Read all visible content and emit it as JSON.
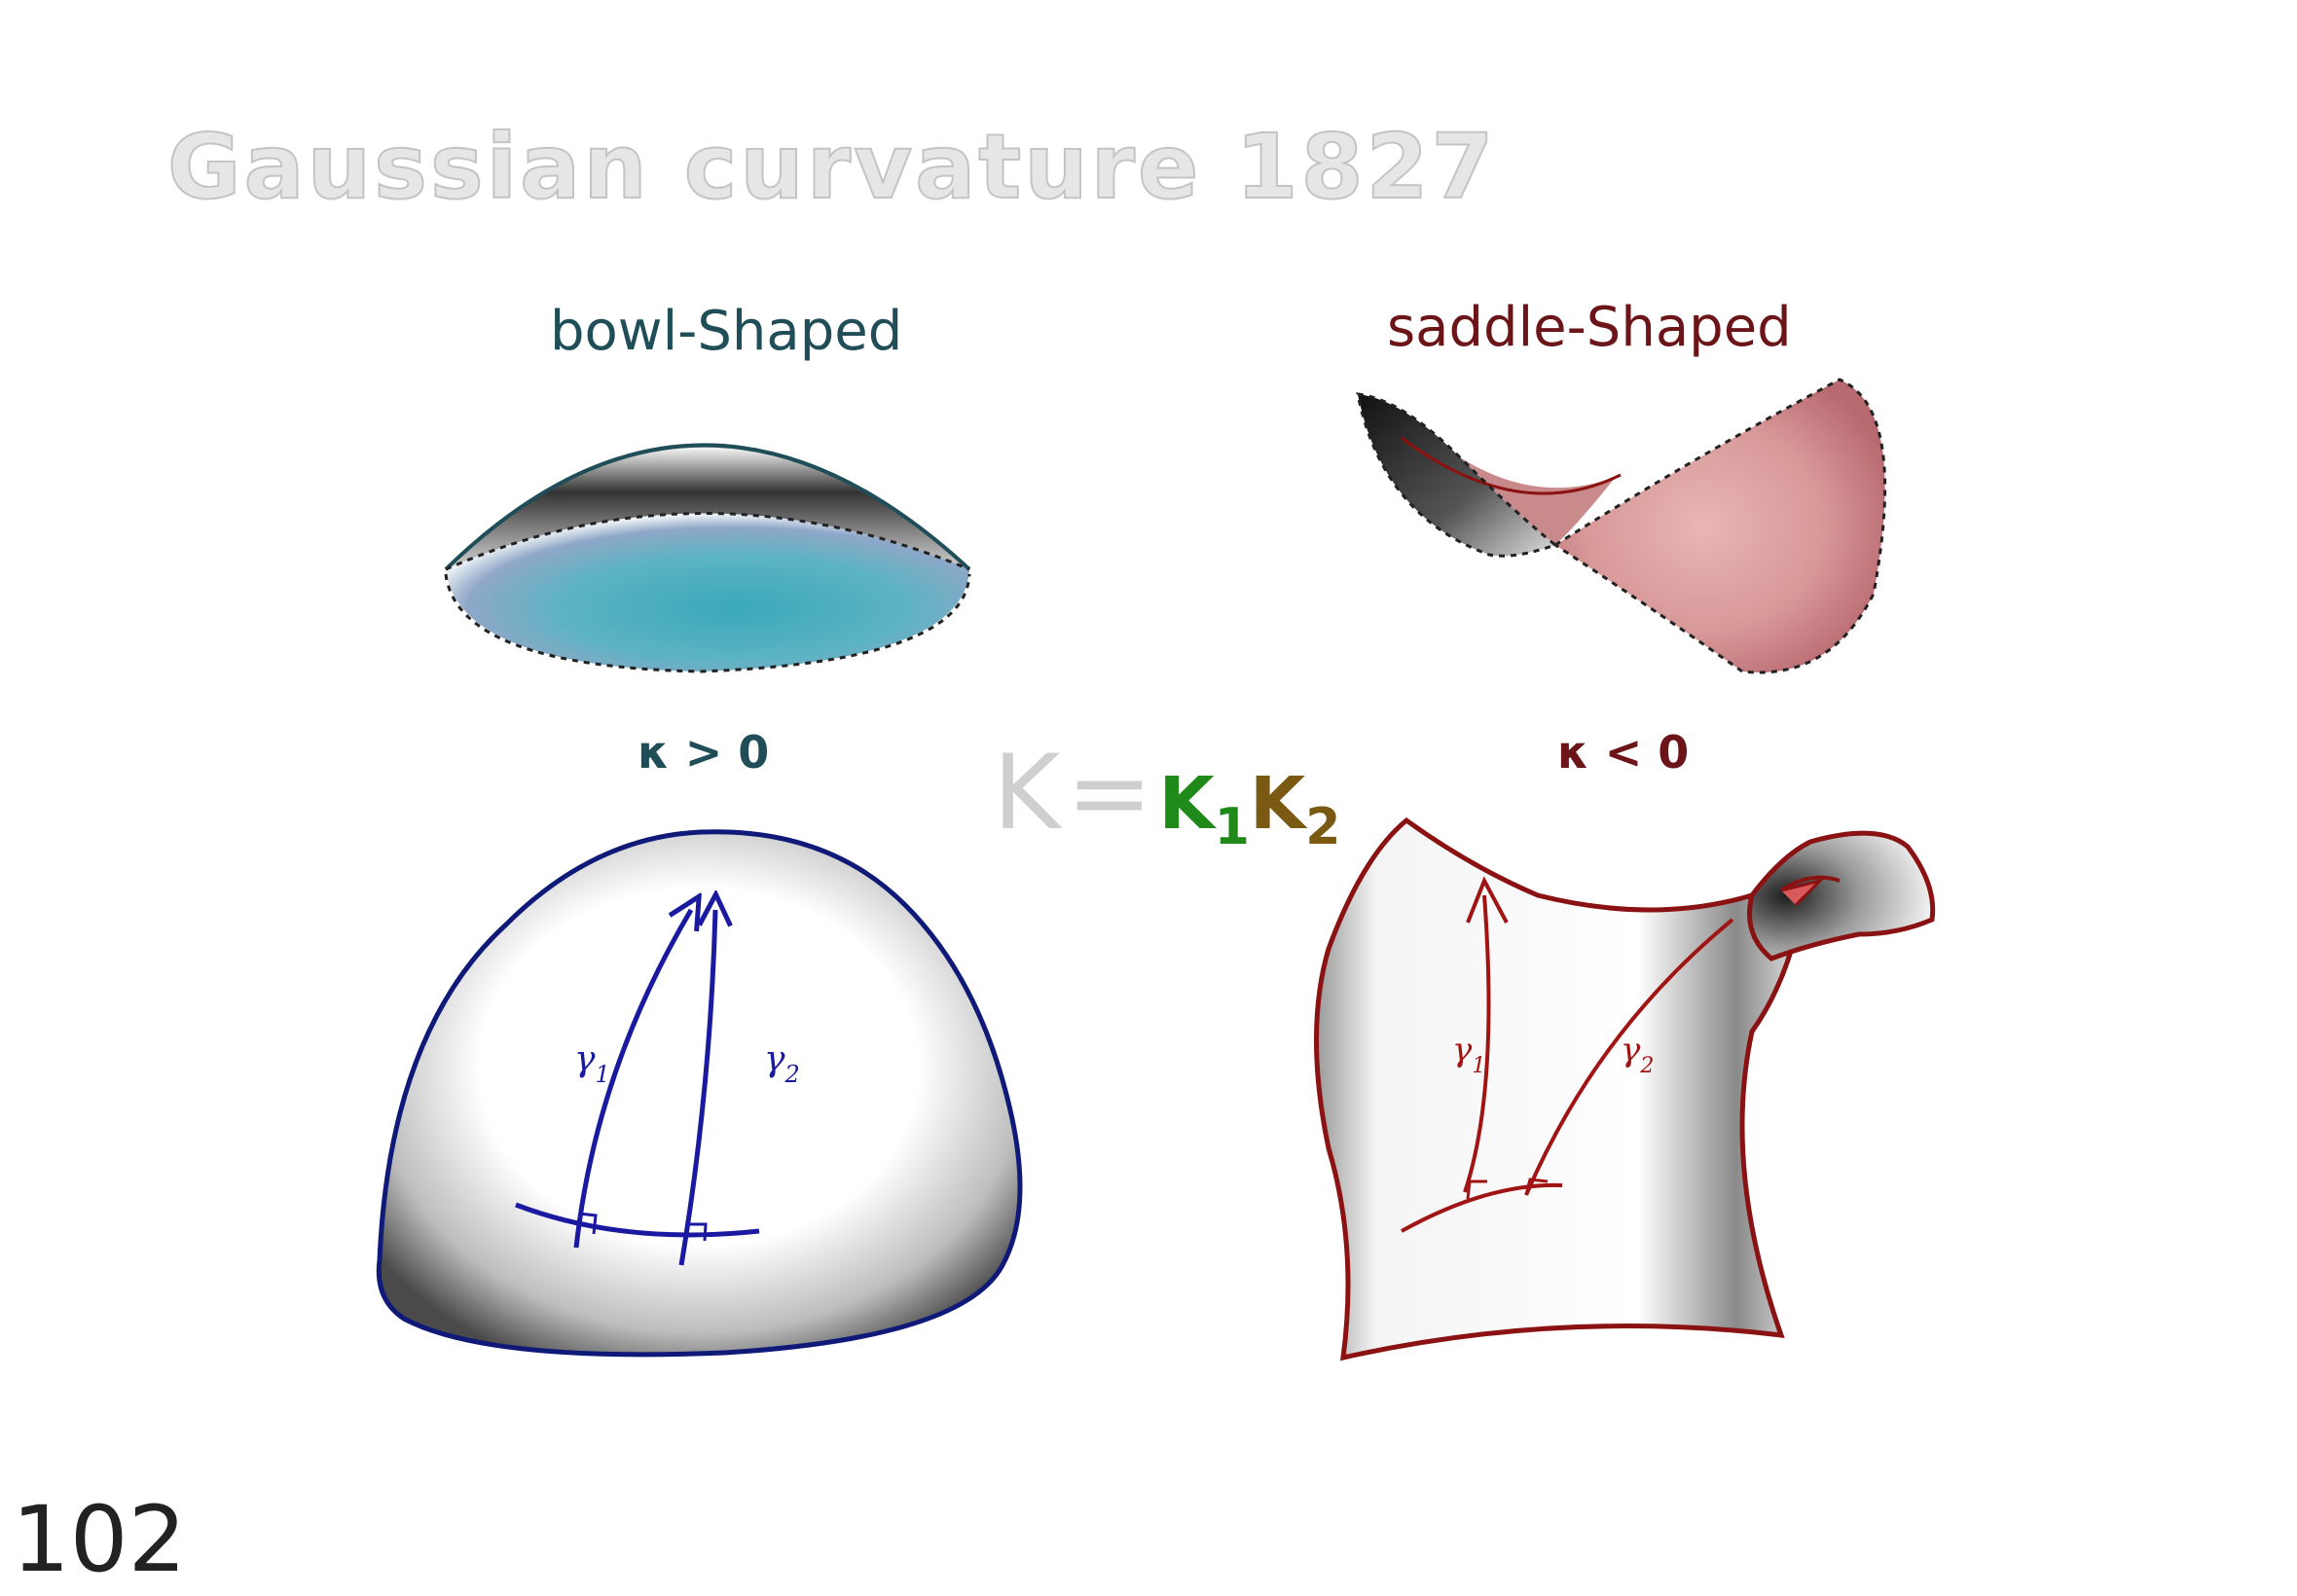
{
  "title": "Gaussian curvature 1827",
  "bowl": {
    "label": "bowl-Shaped",
    "curvature": "κ > 0",
    "gamma1": "γ",
    "gamma1_sub": "1",
    "gamma2": "γ",
    "gamma2_sub": "2"
  },
  "saddle": {
    "label": "saddle-Shaped",
    "curvature": "κ < 0",
    "gamma1": "γ",
    "gamma1_sub": "1",
    "gamma2": "γ",
    "gamma2_sub": "2"
  },
  "formula": {
    "k": "K",
    "eq": "=",
    "k1": "K",
    "k1_sub": "1",
    "k2": "K",
    "k2_sub": "2"
  },
  "page_number": "102",
  "colors": {
    "bowl": "#1f4e58",
    "saddle": "#6b1518",
    "dome_outline": "#0f1a78",
    "saddle_outline": "#8a1212",
    "k1": "#1f8a1a",
    "k2": "#7a5a12"
  }
}
